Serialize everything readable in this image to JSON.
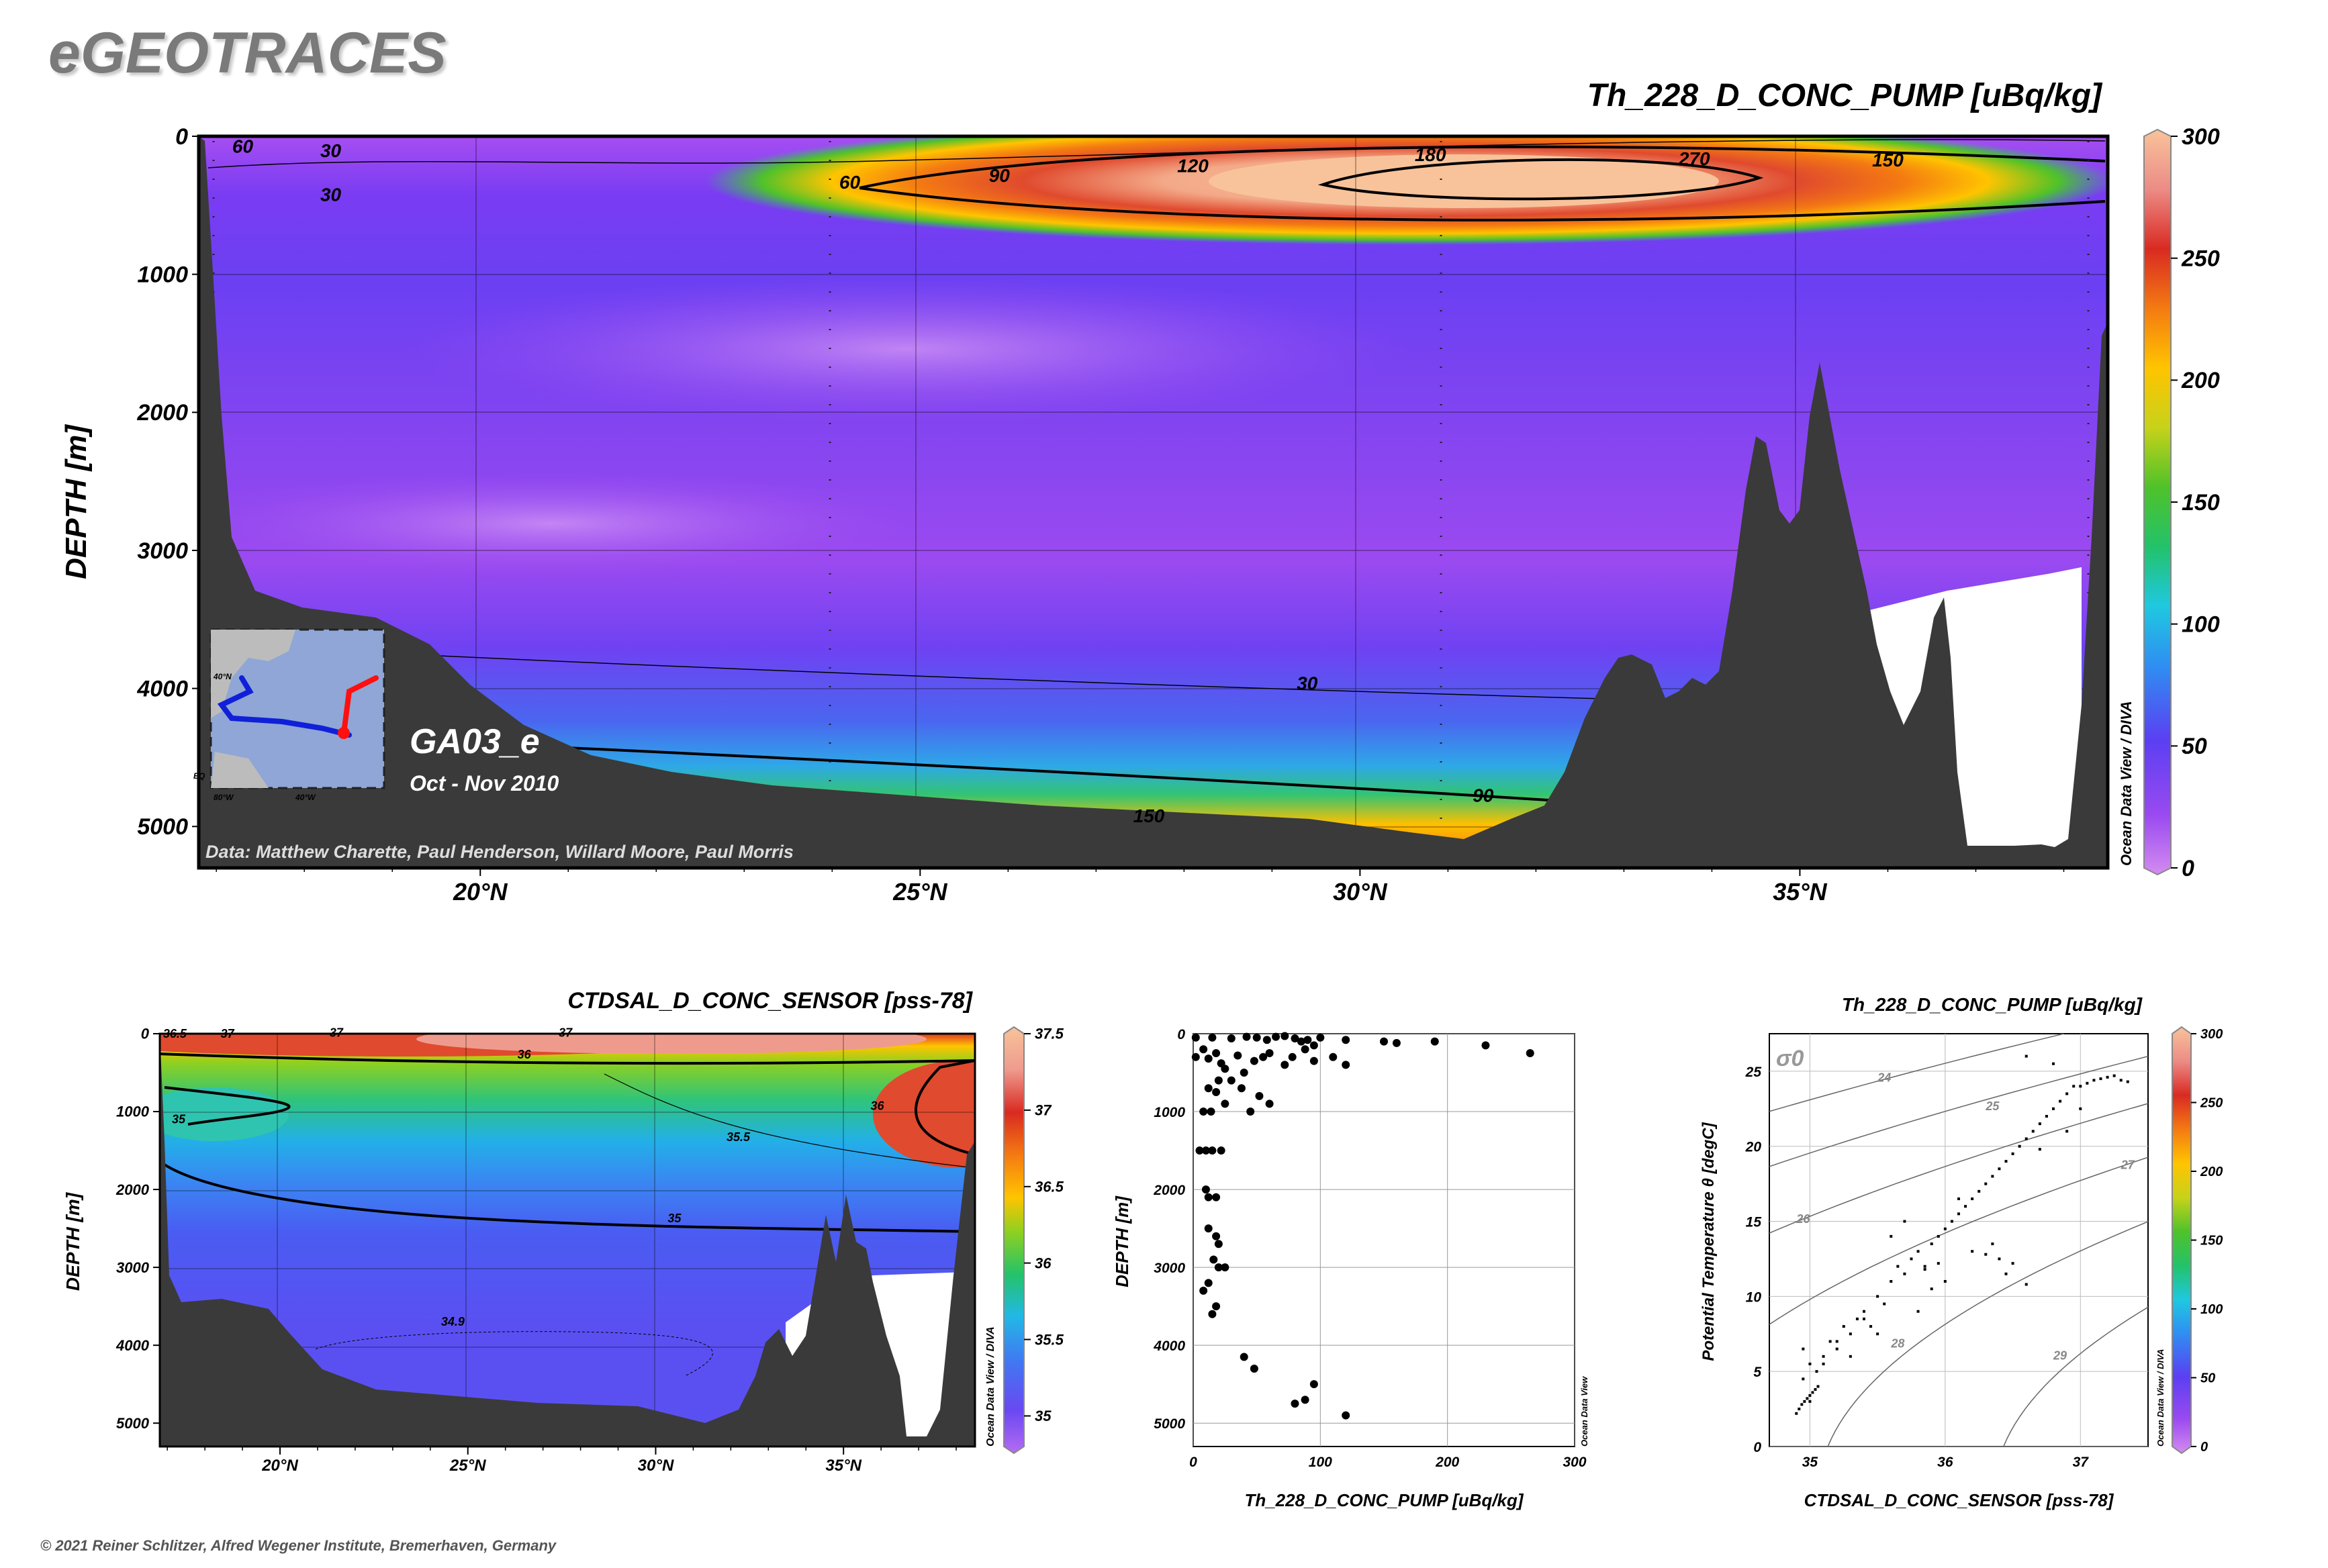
{
  "brand": "eGEOTRACES",
  "copyright": "© 2021 Reiner Schlitzer, Alfred Wegener Institute, Bremerhaven, Germany",
  "colors": {
    "seafloor": "#3a3a3a",
    "contour": "#000000"
  },
  "main": {
    "section_name": "GA03_e",
    "date_range": "Oct - Nov 2010",
    "data_credit": "Data: Matthew Charette, Paul Henderson, Willard Moore, Paul Morris",
    "odv_label": "Ocean Data View / DIVA",
    "map_labels": [
      "40°N",
      "80°W",
      "40°W",
      "EQ"
    ]
  },
  "chart_data": [
    {
      "type": "heatmap",
      "title": "Th_228_D_CONC_PUMP [uBq/kg]",
      "ylabel": "DEPTH [m]",
      "xlabel": "",
      "x_range": [
        16.8,
        38.5
      ],
      "y_range": [
        0,
        5300
      ],
      "x_ticks": [
        {
          "v": 20,
          "label": "20°N"
        },
        {
          "v": 25,
          "label": "25°N"
        },
        {
          "v": 30,
          "label": "30°N"
        },
        {
          "v": 35,
          "label": "35°N"
        }
      ],
      "y_ticks": [
        {
          "v": 0,
          "label": "0"
        },
        {
          "v": 1000,
          "label": "1000"
        },
        {
          "v": 2000,
          "label": "2000"
        },
        {
          "v": 3000,
          "label": "3000"
        },
        {
          "v": 4000,
          "label": "4000"
        },
        {
          "v": 5000,
          "label": "5000"
        }
      ],
      "colorbar": {
        "min": 0,
        "max": 300,
        "ticks": [
          {
            "v": 0,
            "label": "0"
          },
          {
            "v": 50,
            "label": "50"
          },
          {
            "v": 100,
            "label": "100"
          },
          {
            "v": 150,
            "label": "150"
          },
          {
            "v": 200,
            "label": "200"
          },
          {
            "v": 250,
            "label": "250"
          },
          {
            "v": 300,
            "label": "300"
          }
        ]
      },
      "contour_labels": [
        {
          "text": "60",
          "x": 17.3,
          "y": 120
        },
        {
          "text": "30",
          "x": 18.3,
          "y": 150
        },
        {
          "text": "30",
          "x": 18.3,
          "y": 470
        },
        {
          "text": "60",
          "x": 24.2,
          "y": 380
        },
        {
          "text": "90",
          "x": 25.9,
          "y": 330
        },
        {
          "text": "120",
          "x": 28.1,
          "y": 260
        },
        {
          "text": "180",
          "x": 30.8,
          "y": 180
        },
        {
          "text": "270",
          "x": 33.8,
          "y": 210
        },
        {
          "text": "150",
          "x": 36.0,
          "y": 220
        },
        {
          "text": "30",
          "x": 29.4,
          "y": 4010
        },
        {
          "text": "90",
          "x": 31.4,
          "y": 4820
        },
        {
          "text": "150",
          "x": 27.6,
          "y": 4970
        }
      ]
    },
    {
      "type": "heatmap",
      "title": "CTDSAL_D_CONC_SENSOR [pss-78]",
      "ylabel": "DEPTH [m]",
      "xlabel": "",
      "x_range": [
        16.8,
        38.5
      ],
      "y_range": [
        0,
        5300
      ],
      "x_ticks": [
        {
          "v": 20,
          "label": "20°N"
        },
        {
          "v": 25,
          "label": "25°N"
        },
        {
          "v": 30,
          "label": "30°N"
        },
        {
          "v": 35,
          "label": "35°N"
        }
      ],
      "y_ticks": [
        {
          "v": 0,
          "label": "0"
        },
        {
          "v": 1000,
          "label": "1000"
        },
        {
          "v": 2000,
          "label": "2000"
        },
        {
          "v": 3000,
          "label": "3000"
        },
        {
          "v": 4000,
          "label": "4000"
        },
        {
          "v": 5000,
          "label": "5000"
        }
      ],
      "colorbar": {
        "min": 34.8,
        "max": 37.5,
        "ticks": [
          {
            "v": 35,
            "label": "35"
          },
          {
            "v": 35.5,
            "label": "35.5"
          },
          {
            "v": 36,
            "label": "36"
          },
          {
            "v": 36.5,
            "label": "36.5"
          },
          {
            "v": 37,
            "label": "37"
          },
          {
            "v": 37.5,
            "label": "37.5"
          }
        ]
      },
      "contour_labels": [
        {
          "text": "36.5",
          "x": 17.2,
          "y": 50
        },
        {
          "text": "37",
          "x": 18.6,
          "y": 50
        },
        {
          "text": "37",
          "x": 21.5,
          "y": 40
        },
        {
          "text": "36",
          "x": 26.5,
          "y": 320
        },
        {
          "text": "37",
          "x": 27.6,
          "y": 40
        },
        {
          "text": "36",
          "x": 35.9,
          "y": 980
        },
        {
          "text": "35",
          "x": 17.3,
          "y": 1150
        },
        {
          "text": "35.5",
          "x": 32.2,
          "y": 1380
        },
        {
          "text": "35",
          "x": 30.5,
          "y": 2420
        },
        {
          "text": "34.9",
          "x": 24.6,
          "y": 3750
        }
      ]
    },
    {
      "type": "scatter",
      "title": "",
      "xlabel": "Th_228_D_CONC_PUMP [uBq/kg]",
      "ylabel": "DEPTH [m]",
      "xlim": [
        0,
        300
      ],
      "ylim": [
        5300,
        0
      ],
      "x_ticks": [
        0,
        100,
        200,
        300
      ],
      "y_ticks": [
        0,
        1000,
        2000,
        3000,
        4000,
        5000
      ],
      "odv_label": "Ocean Data View",
      "x": [
        2,
        15,
        30,
        42,
        50,
        58,
        65,
        72,
        80,
        85,
        90,
        95,
        100,
        120,
        150,
        160,
        190,
        230,
        265,
        2,
        8,
        12,
        18,
        22,
        25,
        35,
        40,
        48,
        55,
        60,
        72,
        78,
        88,
        95,
        110,
        120,
        20,
        38,
        52,
        12,
        25,
        45,
        60,
        30,
        18,
        8,
        5,
        10,
        15,
        22,
        14,
        10,
        12,
        18,
        20,
        25,
        12,
        18,
        15,
        8,
        20,
        16,
        12,
        18,
        40,
        48,
        88,
        80,
        120,
        95
      ],
      "y": [
        50,
        50,
        60,
        40,
        50,
        80,
        40,
        30,
        60,
        100,
        80,
        150,
        50,
        80,
        100,
        120,
        100,
        150,
        250,
        300,
        200,
        320,
        250,
        380,
        450,
        280,
        500,
        350,
        300,
        250,
        400,
        300,
        200,
        350,
        300,
        400,
        600,
        700,
        800,
        700,
        900,
        1000,
        900,
        600,
        750,
        1000,
        1500,
        1500,
        1500,
        1500,
        1000,
        2000,
        2100,
        2100,
        2700,
        3000,
        3200,
        3500,
        3600,
        3300,
        3000,
        2900,
        2500,
        2600,
        4150,
        4300,
        4700,
        4750,
        4900,
        4500
      ]
    },
    {
      "type": "scatter",
      "title": "Th_228_D_CONC_PUMP [uBq/kg]",
      "xlabel": "CTDSAL_D_CONC_SENSOR [pss-78]",
      "ylabel": "Potential Temperature θ [degC]",
      "xlim": [
        34.7,
        37.5
      ],
      "ylim": [
        0,
        27.5
      ],
      "x_ticks": [
        35,
        36,
        37
      ],
      "y_ticks": [
        0,
        5,
        10,
        15,
        20,
        25
      ],
      "isopycnal_label": "σ0",
      "isopycnals": [
        {
          "label": "24",
          "lx": 35.55,
          "ly": 24.3
        },
        {
          "label": "25",
          "lx": 36.35,
          "ly": 22.4
        },
        {
          "label": "26",
          "lx": 34.95,
          "ly": 14.9
        },
        {
          "label": "27",
          "lx": 37.35,
          "ly": 18.5
        },
        {
          "label": "28",
          "lx": 35.65,
          "ly": 6.6
        },
        {
          "label": "29",
          "lx": 36.85,
          "ly": 5.8
        }
      ],
      "colorbar": {
        "min": 0,
        "max": 300,
        "ticks": [
          {
            "v": 0,
            "label": "0"
          },
          {
            "v": 50,
            "label": "50"
          },
          {
            "v": 100,
            "label": "100"
          },
          {
            "v": 150,
            "label": "150"
          },
          {
            "v": 200,
            "label": "200"
          },
          {
            "v": 250,
            "label": "250"
          },
          {
            "v": 300,
            "label": "300"
          }
        ]
      },
      "x": [
        34.9,
        34.92,
        34.94,
        34.96,
        34.98,
        35.0,
        35.02,
        35.04,
        35.06,
        34.95,
        35.0,
        35.05,
        35.1,
        35.15,
        35.2,
        35.25,
        35.3,
        35.35,
        35.4,
        35.45,
        35.5,
        35.55,
        35.6,
        35.65,
        35.7,
        35.75,
        35.8,
        35.85,
        35.9,
        35.95,
        36.0,
        36.05,
        36.1,
        36.15,
        36.2,
        36.25,
        36.3,
        36.35,
        36.4,
        36.45,
        36.5,
        36.55,
        36.6,
        36.65,
        36.7,
        36.75,
        36.8,
        36.85,
        36.9,
        36.95,
        37.0,
        37.05,
        37.1,
        37.15,
        37.2,
        37.25,
        37.3,
        37.35,
        36.2,
        36.3,
        36.4,
        36.5,
        35.9,
        36.0,
        35.8,
        35.5,
        35.3,
        35.1,
        34.95,
        35.6,
        35.7,
        36.1,
        36.9,
        37.0,
        36.8,
        36.6,
        35.4,
        35.2,
        35.0,
        36.45,
        36.6,
        35.95,
        35.85,
        36.35,
        36.7
      ],
      "y": [
        2.2,
        2.5,
        2.8,
        3.0,
        3.2,
        3.4,
        3.6,
        3.8,
        4.0,
        6.5,
        5.5,
        5.0,
        6.0,
        7.0,
        6.5,
        8.0,
        7.5,
        8.5,
        9.0,
        8.0,
        10.0,
        9.5,
        11.0,
        12.0,
        11.5,
        12.5,
        13.0,
        12.0,
        13.5,
        14.0,
        14.5,
        15.0,
        15.5,
        16.0,
        16.5,
        17.0,
        17.5,
        18.0,
        18.5,
        19.0,
        19.5,
        20.0,
        20.5,
        21.0,
        21.5,
        22.0,
        22.5,
        23.0,
        23.5,
        24.0,
        24.0,
        24.2,
        24.4,
        24.5,
        24.6,
        24.7,
        24.4,
        24.3,
        13.0,
        12.8,
        12.5,
        12.2,
        10.5,
        11.0,
        9.0,
        7.5,
        6.0,
        5.5,
        4.5,
        14.0,
        15.0,
        16.5,
        21.0,
        22.5,
        25.5,
        26.0,
        8.5,
        7.0,
        3.0,
        11.5,
        10.8,
        12.2,
        11.8,
        13.5,
        19.8
      ]
    }
  ]
}
